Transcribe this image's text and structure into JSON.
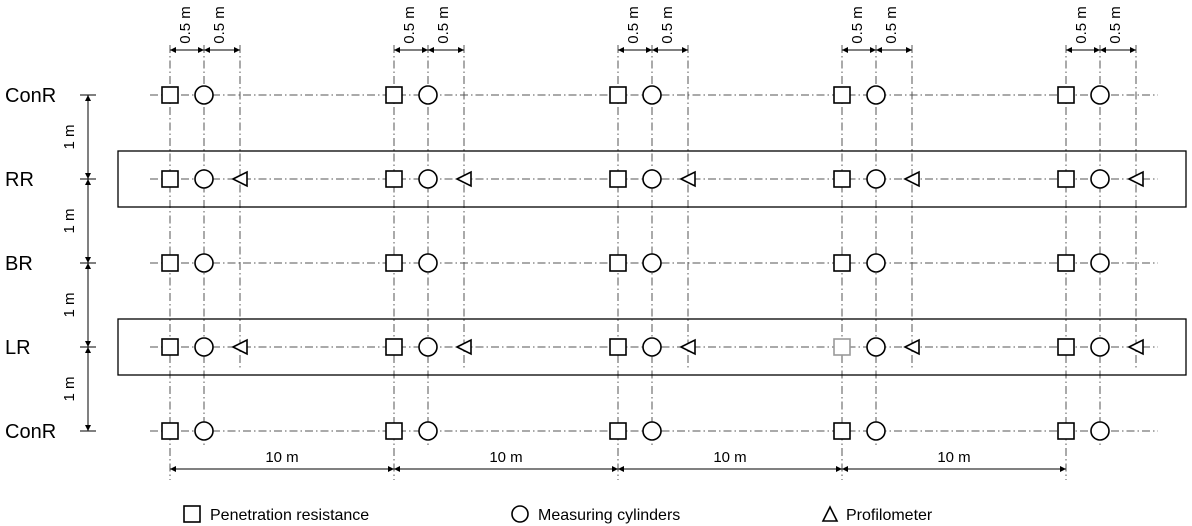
{
  "rows": [
    {
      "label": "ConR",
      "profilometer": false
    },
    {
      "label": "RR",
      "profilometer": true
    },
    {
      "label": "BR",
      "profilometer": false
    },
    {
      "label": "LR",
      "profilometer": true
    },
    {
      "label": "ConR",
      "profilometer": false
    }
  ],
  "row_spacing_label": "1 m",
  "offset_labels": [
    "0.5 m",
    "0.5 m"
  ],
  "column_spacing_label": "10 m",
  "column_count": 5,
  "faded_marker": {
    "row": 3,
    "column": 3
  },
  "legend": {
    "penetration": "Penetration resistance",
    "cylinders": "Measuring cylinders",
    "profilometer": "Profilometer"
  }
}
